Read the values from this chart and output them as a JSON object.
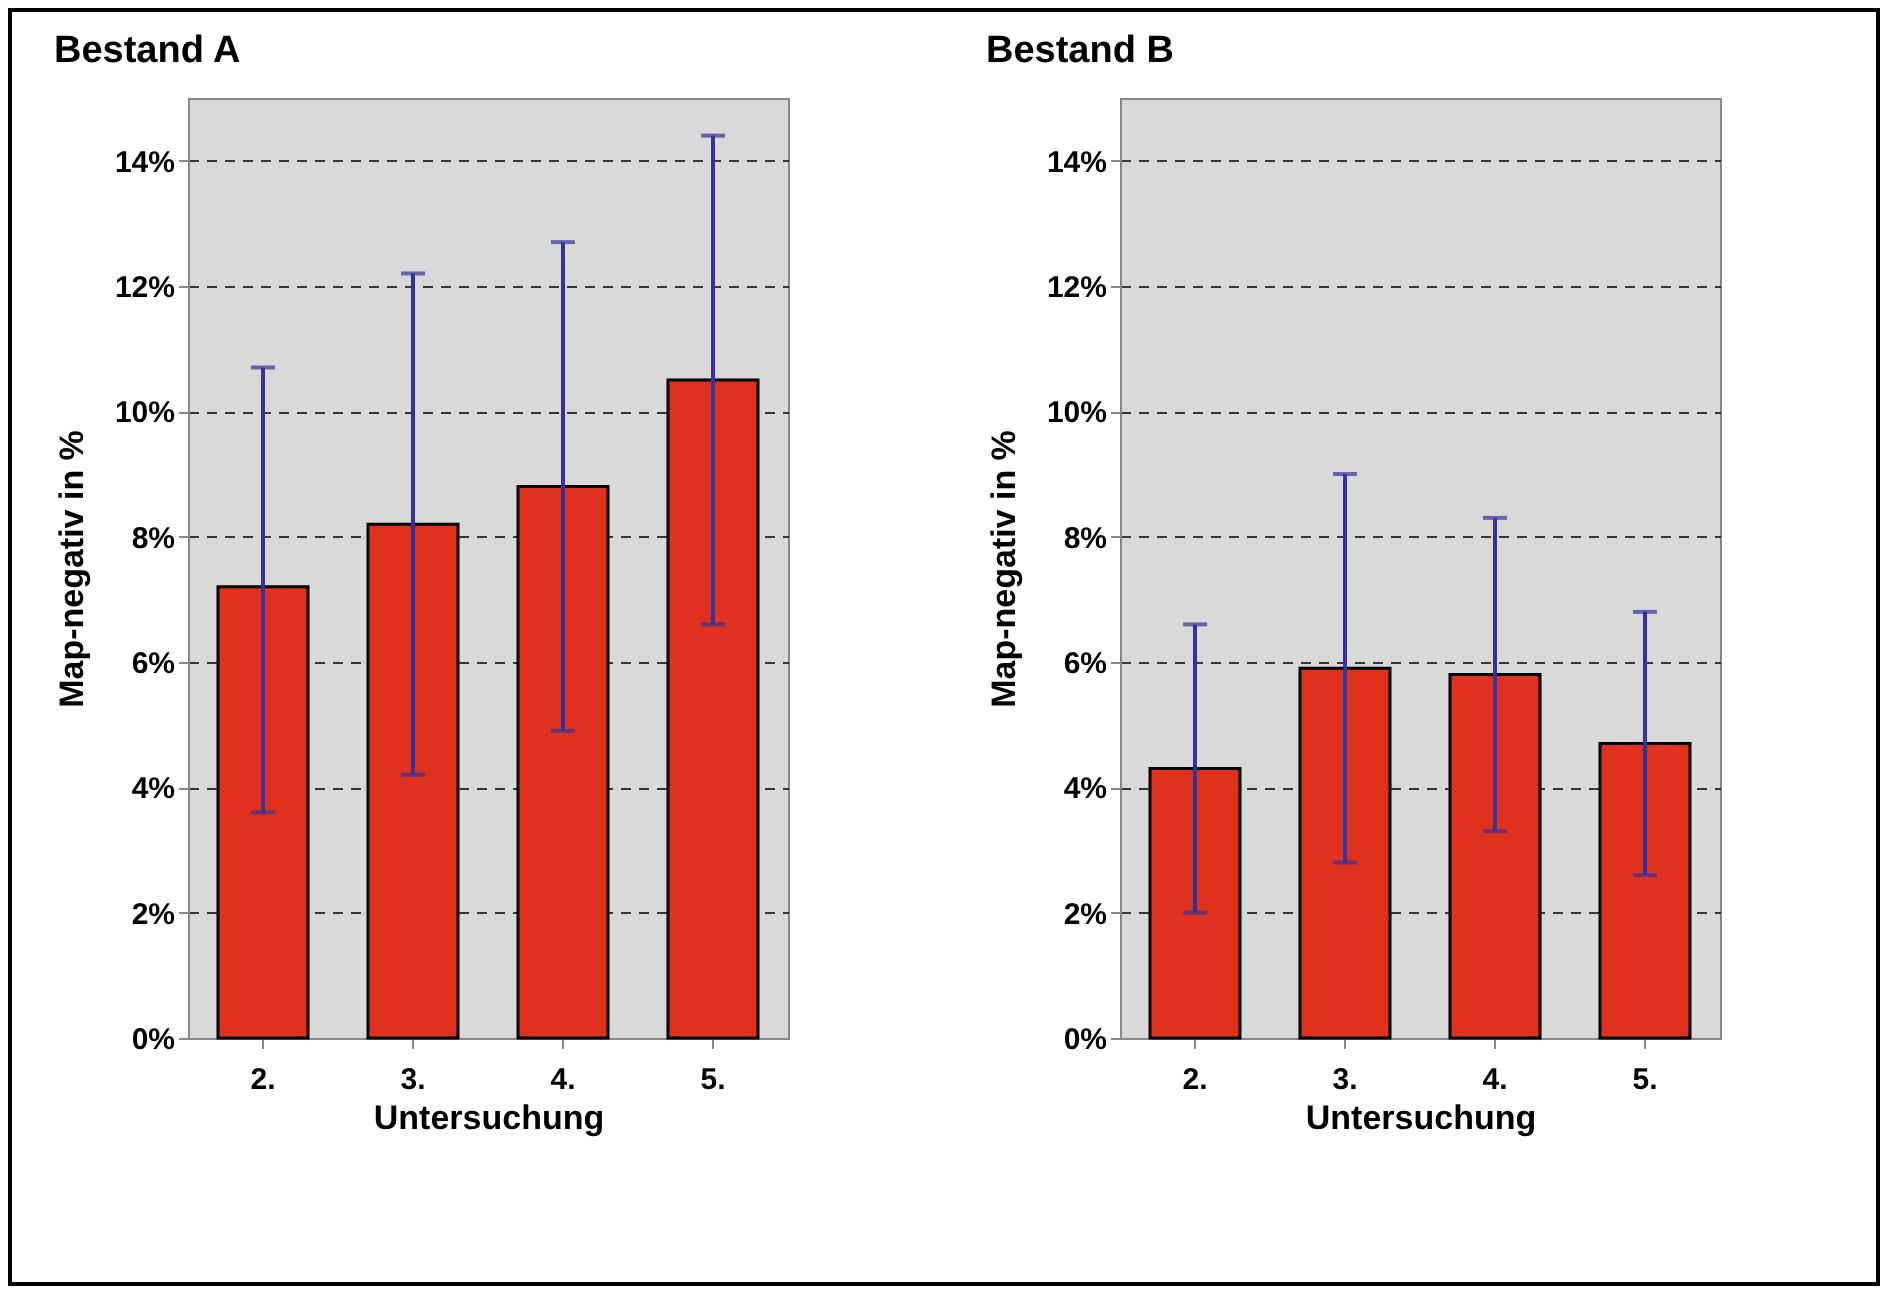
{
  "chart_data": [
    {
      "type": "bar",
      "title": "Bestand A",
      "xlabel": "Untersuchung",
      "ylabel": "Map-negativ in %",
      "categories": [
        "2.",
        "3.",
        "4.",
        "5."
      ],
      "series": [
        {
          "color": "#e0301e",
          "values": [
            7.2,
            8.2,
            8.8,
            10.5
          ],
          "errors": [
            [
              3.6,
              10.7
            ],
            [
              4.2,
              12.2
            ],
            [
              4.9,
              12.7
            ],
            [
              6.6,
              14.4
            ]
          ]
        }
      ],
      "ylim": [
        0,
        15
      ],
      "yticks": [
        {
          "value": 0,
          "label": "0%"
        },
        {
          "value": 2,
          "label": "2%"
        },
        {
          "value": 4,
          "label": "4%"
        },
        {
          "value": 6,
          "label": "6%"
        },
        {
          "value": 8,
          "label": "8%"
        },
        {
          "value": 10,
          "label": "10%"
        },
        {
          "value": 12,
          "label": "12%"
        },
        {
          "value": 14,
          "label": "14%"
        }
      ],
      "grid": "y"
    },
    {
      "type": "bar",
      "title": "Bestand B",
      "xlabel": "Untersuchung",
      "ylabel": "Map-negativ in %",
      "categories": [
        "2.",
        "3.",
        "4.",
        "5."
      ],
      "series": [
        {
          "color": "#e0301e",
          "values": [
            4.3,
            5.9,
            5.8,
            4.7
          ],
          "errors": [
            [
              2.0,
              6.6
            ],
            [
              2.8,
              9.0
            ],
            [
              3.3,
              8.3
            ],
            [
              2.6,
              6.8
            ]
          ]
        }
      ],
      "ylim": [
        0,
        15
      ],
      "yticks": [
        {
          "value": 0,
          "label": "0%"
        },
        {
          "value": 2,
          "label": "2%"
        },
        {
          "value": 4,
          "label": "4%"
        },
        {
          "value": 6,
          "label": "6%"
        },
        {
          "value": 8,
          "label": "8%"
        },
        {
          "value": 10,
          "label": "10%"
        },
        {
          "value": 12,
          "label": "12%"
        },
        {
          "value": 14,
          "label": "14%"
        }
      ],
      "grid": "y"
    }
  ]
}
